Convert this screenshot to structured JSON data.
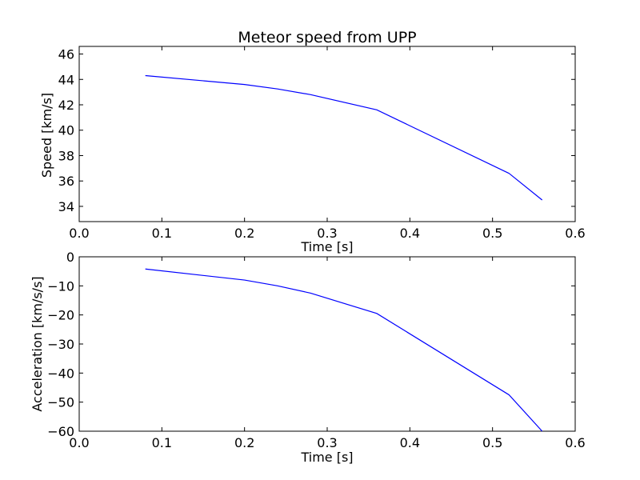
{
  "chart_data": [
    {
      "type": "line",
      "title": "Meteor speed from  UPP",
      "xlabel": "Time [s]",
      "ylabel": "Speed [km/s]",
      "xlim": [
        0.0,
        0.6
      ],
      "ylim": [
        32.8,
        46.6
      ],
      "xticks": [
        0.0,
        0.1,
        0.2,
        0.3,
        0.4,
        0.5,
        0.6
      ],
      "xtick_labels": [
        "0.0",
        "0.1",
        "0.2",
        "0.3",
        "0.4",
        "0.5",
        "0.6"
      ],
      "yticks": [
        34,
        36,
        38,
        40,
        42,
        44,
        46
      ],
      "ytick_labels": [
        "34",
        "36",
        "38",
        "40",
        "42",
        "44",
        "46"
      ],
      "grid": false,
      "color": "#0000ff",
      "series": [
        {
          "x": [
            0.08,
            0.2,
            0.24,
            0.28,
            0.36,
            0.52,
            0.56
          ],
          "y": [
            44.3,
            43.6,
            43.25,
            42.8,
            41.6,
            36.6,
            34.5
          ]
        }
      ]
    },
    {
      "type": "line",
      "title": "",
      "xlabel": "Time [s]",
      "ylabel": "Acceleration [km/s/s]",
      "xlim": [
        0.0,
        0.6
      ],
      "ylim": [
        -60,
        0
      ],
      "xticks": [
        0.0,
        0.1,
        0.2,
        0.3,
        0.4,
        0.5,
        0.6
      ],
      "xtick_labels": [
        "0.0",
        "0.1",
        "0.2",
        "0.3",
        "0.4",
        "0.5",
        "0.6"
      ],
      "yticks": [
        0,
        -10,
        -20,
        -30,
        -40,
        -50,
        -60
      ],
      "ytick_labels": [
        "0",
        "−10",
        "−20",
        "−30",
        "−40",
        "−50",
        "−60"
      ],
      "grid": false,
      "color": "#0000ff",
      "series": [
        {
          "x": [
            0.08,
            0.2,
            0.24,
            0.28,
            0.36,
            0.52,
            0.56
          ],
          "y": [
            -4.2,
            -8.0,
            -10.0,
            -12.5,
            -19.5,
            -47.5,
            -60.0
          ]
        }
      ]
    }
  ]
}
